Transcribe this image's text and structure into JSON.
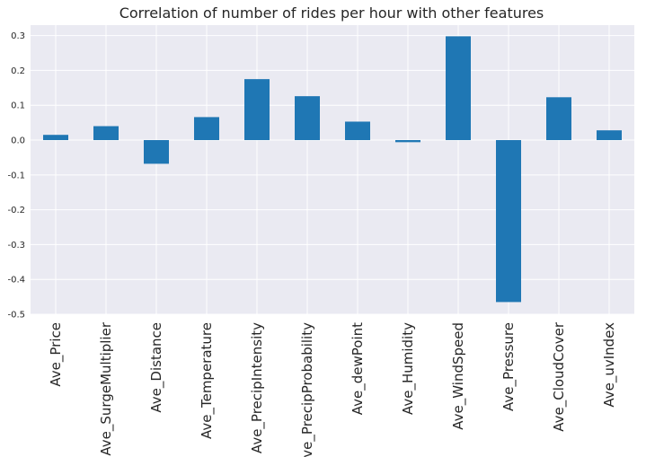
{
  "chart_data": {
    "type": "bar",
    "title": "Correlation of number of rides per hour with other features",
    "xlabel": "",
    "ylabel": "",
    "categories": [
      "Ave_Price",
      "Ave_SurgeMultiplier",
      "Ave_Distance",
      "Ave_Temperature",
      "Ave_PrecipIntensity",
      "Ave_PrecipProbability",
      "Ave_dewPoint",
      "Ave_Humidity",
      "Ave_WindSpeed",
      "Ave_Pressure",
      "Ave_CloudCover",
      "Ave_uvIndex"
    ],
    "values": [
      0.015,
      0.04,
      -0.068,
      0.066,
      0.175,
      0.126,
      0.053,
      -0.006,
      0.298,
      -0.465,
      0.123,
      0.028
    ],
    "ylim": [
      -0.5,
      0.33
    ],
    "yticks": [
      0.3,
      0.2,
      0.1,
      0.0,
      -0.1,
      -0.2,
      -0.3,
      -0.4,
      -0.5
    ],
    "ytick_labels": [
      "0.3",
      "0.2",
      "0.1",
      "0.0",
      "-0.1",
      "-0.2",
      "-0.3",
      "-0.4",
      "-0.5"
    ],
    "grid": true,
    "colors": {
      "bar": "#1f77b4",
      "plot_bg": "#eaeaf2",
      "grid": "#ffffff"
    }
  }
}
